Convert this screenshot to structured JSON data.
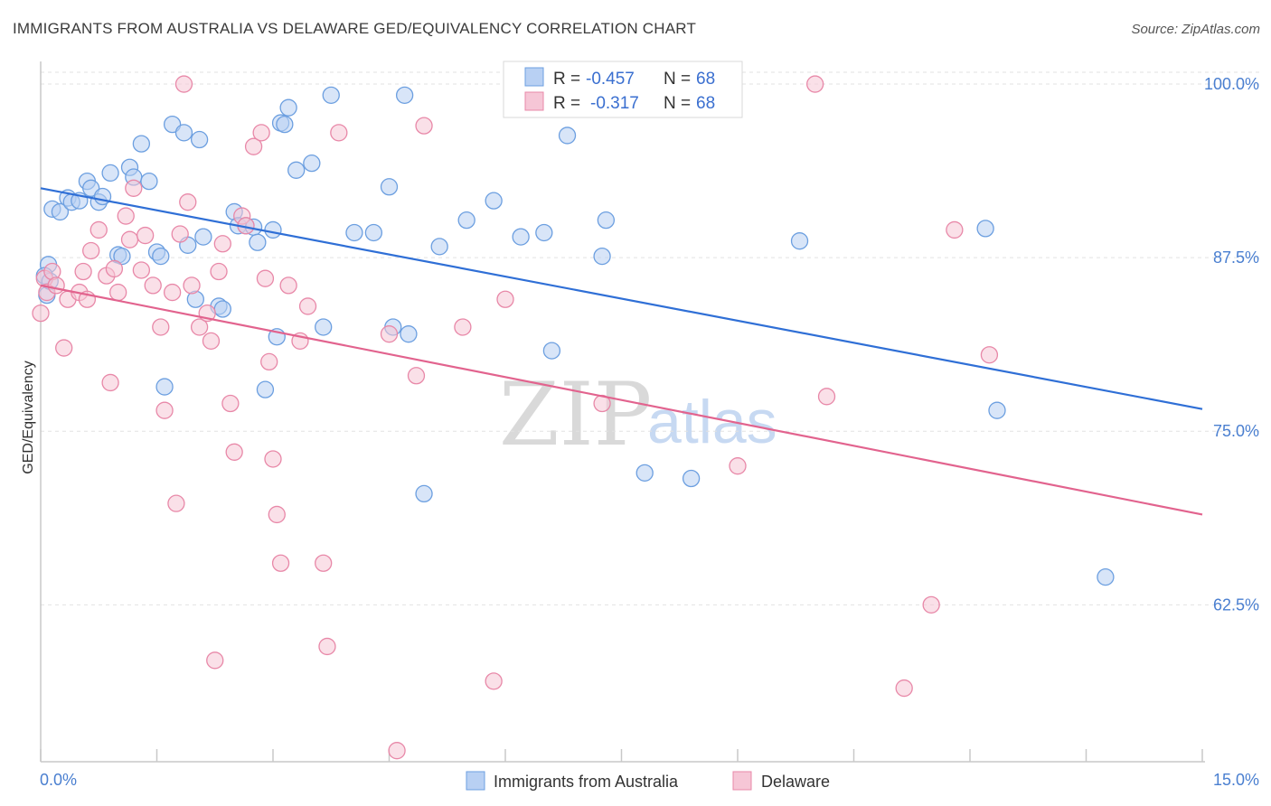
{
  "header": {
    "title": "IMMIGRANTS FROM AUSTRALIA VS DELAWARE GED/EQUIVALENCY CORRELATION CHART",
    "source": "Source: ZipAtlas.com"
  },
  "watermark": {
    "zip": "ZIP",
    "atlas": "atlas"
  },
  "stats_legend": {
    "rows": [
      {
        "r_label": "R =",
        "r_value": "-0.457",
        "n_label": "N =",
        "n_value": "68"
      },
      {
        "r_label": "R =",
        "r_value": "-0.317",
        "n_label": "N =",
        "n_value": "68"
      }
    ]
  },
  "chart_data": {
    "type": "scatter",
    "title": "IMMIGRANTS FROM AUSTRALIA VS DELAWARE GED/EQUIVALENCY CORRELATION CHART",
    "xlabel": "",
    "ylabel": "GED/Equivalency",
    "xlim": [
      0,
      15
    ],
    "ylim": [
      51.2,
      101.5
    ],
    "x_tick_labels": [
      "0.0%",
      "15.0%"
    ],
    "y_ticks": [
      {
        "value": 100.0,
        "label": "100.0%"
      },
      {
        "value": 87.5,
        "label": "87.5%"
      },
      {
        "value": 75.0,
        "label": "75.0%"
      },
      {
        "value": 62.5,
        "label": "62.5%"
      }
    ],
    "grid": true,
    "legend_position": "bottom-center",
    "series": [
      {
        "name": "Immigrants from Australia",
        "color": "#6c9fe0",
        "fill": "#b8d0f3",
        "trend": {
          "x": [
            0,
            15
          ],
          "y": [
            92.5,
            76.6
          ]
        },
        "points": [
          [
            0.1,
            87.0
          ],
          [
            0.15,
            91.0
          ],
          [
            0.25,
            90.8
          ],
          [
            0.35,
            91.8
          ],
          [
            0.4,
            91.5
          ],
          [
            0.5,
            91.6
          ],
          [
            0.6,
            93.0
          ],
          [
            0.65,
            92.5
          ],
          [
            0.75,
            91.5
          ],
          [
            0.8,
            91.9
          ],
          [
            0.9,
            93.6
          ],
          [
            1.0,
            87.7
          ],
          [
            1.05,
            87.6
          ],
          [
            1.15,
            94.0
          ],
          [
            1.2,
            93.3
          ],
          [
            1.3,
            95.7
          ],
          [
            1.4,
            93.0
          ],
          [
            1.5,
            87.9
          ],
          [
            1.55,
            87.6
          ],
          [
            1.6,
            78.2
          ],
          [
            1.7,
            97.1
          ],
          [
            1.85,
            96.5
          ],
          [
            1.9,
            88.4
          ],
          [
            2.0,
            84.5
          ],
          [
            2.05,
            96.0
          ],
          [
            2.1,
            89.0
          ],
          [
            2.3,
            84.0
          ],
          [
            2.35,
            83.8
          ],
          [
            2.5,
            90.8
          ],
          [
            2.55,
            89.8
          ],
          [
            2.65,
            89.8
          ],
          [
            2.75,
            89.7
          ],
          [
            2.8,
            88.6
          ],
          [
            2.9,
            78.0
          ],
          [
            3.0,
            89.5
          ],
          [
            3.05,
            81.8
          ],
          [
            3.1,
            97.2
          ],
          [
            3.15,
            97.1
          ],
          [
            3.2,
            98.3
          ],
          [
            3.3,
            93.8
          ],
          [
            3.5,
            94.3
          ],
          [
            3.65,
            82.5
          ],
          [
            3.75,
            99.2
          ],
          [
            4.05,
            89.3
          ],
          [
            4.3,
            89.3
          ],
          [
            4.5,
            92.6
          ],
          [
            4.55,
            82.5
          ],
          [
            4.7,
            99.2
          ],
          [
            4.75,
            82.0
          ],
          [
            4.95,
            70.5
          ],
          [
            5.15,
            88.3
          ],
          [
            5.5,
            90.2
          ],
          [
            5.85,
            91.6
          ],
          [
            6.2,
            89.0
          ],
          [
            6.5,
            89.3
          ],
          [
            6.6,
            80.8
          ],
          [
            6.8,
            96.3
          ],
          [
            7.25,
            87.6
          ],
          [
            7.3,
            90.2
          ],
          [
            7.8,
            72.0
          ],
          [
            8.4,
            71.6
          ],
          [
            9.8,
            88.7
          ],
          [
            12.2,
            89.6
          ],
          [
            12.35,
            76.5
          ],
          [
            13.75,
            64.5
          ],
          [
            0.05,
            86.2
          ],
          [
            0.08,
            84.8
          ],
          [
            0.12,
            85.8
          ]
        ]
      },
      {
        "name": "Delaware",
        "color": "#e888a8",
        "fill": "#f6c6d6",
        "trend": {
          "x": [
            0,
            15
          ],
          "y": [
            85.5,
            69.0
          ]
        },
        "points": [
          [
            0.05,
            86.0
          ],
          [
            0.08,
            85.0
          ],
          [
            0.15,
            86.5
          ],
          [
            0.2,
            85.5
          ],
          [
            0.3,
            81.0
          ],
          [
            0.35,
            84.5
          ],
          [
            0.5,
            85.0
          ],
          [
            0.55,
            86.5
          ],
          [
            0.6,
            84.5
          ],
          [
            0.65,
            88.0
          ],
          [
            0.75,
            89.5
          ],
          [
            0.85,
            86.2
          ],
          [
            0.9,
            78.5
          ],
          [
            0.95,
            86.7
          ],
          [
            1.0,
            85.0
          ],
          [
            1.1,
            90.5
          ],
          [
            1.15,
            88.8
          ],
          [
            1.2,
            92.5
          ],
          [
            1.3,
            86.6
          ],
          [
            1.35,
            89.1
          ],
          [
            1.45,
            85.5
          ],
          [
            1.55,
            82.5
          ],
          [
            1.6,
            76.5
          ],
          [
            1.7,
            85.0
          ],
          [
            1.75,
            69.8
          ],
          [
            1.8,
            89.2
          ],
          [
            1.9,
            91.5
          ],
          [
            1.95,
            85.5
          ],
          [
            2.05,
            82.5
          ],
          [
            2.15,
            83.5
          ],
          [
            2.2,
            81.5
          ],
          [
            2.25,
            58.5
          ],
          [
            2.3,
            86.5
          ],
          [
            2.35,
            88.5
          ],
          [
            2.45,
            77.0
          ],
          [
            2.5,
            73.5
          ],
          [
            2.6,
            90.5
          ],
          [
            2.65,
            89.8
          ],
          [
            2.75,
            95.5
          ],
          [
            2.85,
            96.5
          ],
          [
            2.9,
            86.0
          ],
          [
            2.95,
            80.0
          ],
          [
            3.0,
            73.0
          ],
          [
            3.05,
            69.0
          ],
          [
            3.1,
            65.5
          ],
          [
            3.2,
            85.5
          ],
          [
            3.35,
            81.5
          ],
          [
            3.45,
            84.0
          ],
          [
            3.65,
            65.5
          ],
          [
            3.7,
            59.5
          ],
          [
            3.85,
            96.5
          ],
          [
            4.5,
            82.0
          ],
          [
            4.6,
            52.0
          ],
          [
            4.85,
            79.0
          ],
          [
            4.95,
            97.0
          ],
          [
            5.45,
            82.5
          ],
          [
            5.85,
            57.0
          ],
          [
            6.0,
            84.5
          ],
          [
            7.25,
            77.0
          ],
          [
            9.0,
            72.5
          ],
          [
            10.0,
            100.0
          ],
          [
            10.15,
            77.5
          ],
          [
            11.15,
            56.5
          ],
          [
            11.5,
            62.5
          ],
          [
            11.8,
            89.5
          ],
          [
            12.25,
            80.5
          ],
          [
            1.85,
            100.0
          ],
          [
            0.0,
            83.5
          ]
        ]
      }
    ]
  }
}
